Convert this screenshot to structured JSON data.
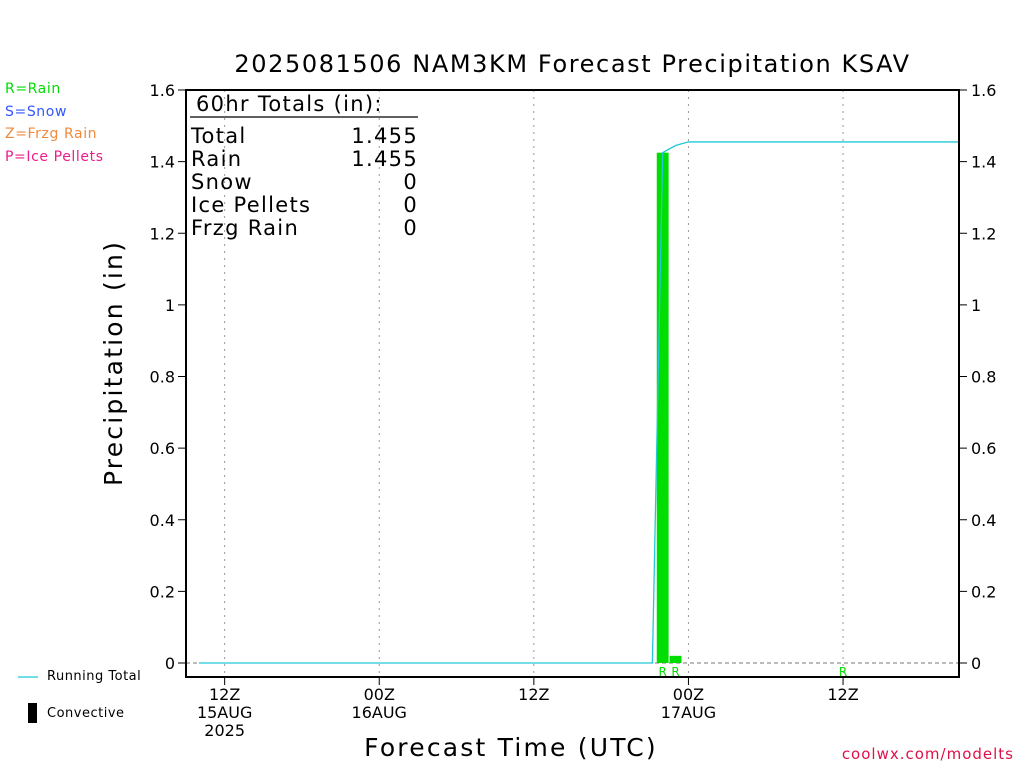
{
  "title": "2025081506 NAM3KM Forecast Precipitation KSAV",
  "legend_types": [
    {
      "label": "R=Rain",
      "color": "#00dd00"
    },
    {
      "label": "S=Snow",
      "color": "#3355ff"
    },
    {
      "label": "Z=Frzg Rain",
      "color": "#f08a3c"
    },
    {
      "label": "P=Ice Pellets",
      "color": "#ee1c8c"
    }
  ],
  "totals_box": {
    "heading": "60hr Totals (in):",
    "rows": [
      {
        "label": "Total",
        "value": "1.455"
      },
      {
        "label": "Rain",
        "value": "1.455"
      },
      {
        "label": "Snow",
        "value": "0"
      },
      {
        "label": "Ice Pellets",
        "value": "0"
      },
      {
        "label": "Frzg Rain",
        "value": "0"
      }
    ]
  },
  "key": {
    "running_total": "Running Total",
    "convective": "Convective"
  },
  "credit": "coolwx.com/modelts",
  "colors": {
    "running_total": "#22c8d8",
    "precip_bar": "#00dd00",
    "rain_marker": "#00dd00"
  },
  "chart_data": {
    "type": "bar",
    "title": "2025081506 NAM3KM Forecast Precipitation KSAV",
    "xlabel": "Forecast Time (UTC)",
    "ylabel": "Precipitation (in)",
    "ylim": [
      0,
      1.6
    ],
    "yticks": [
      "0",
      "0.2",
      "0.4",
      "0.6",
      "0.8",
      "1",
      "1.2",
      "1.4",
      "1.6"
    ],
    "x_unit": "forecast hour",
    "xlim": [
      3,
      63
    ],
    "xticks": [
      {
        "hour": 6,
        "lines": [
          "12Z",
          "15AUG",
          "2025"
        ]
      },
      {
        "hour": 18,
        "lines": [
          "00Z",
          "16AUG"
        ]
      },
      {
        "hour": 30,
        "lines": [
          "12Z"
        ]
      },
      {
        "hour": 42,
        "lines": [
          "00Z",
          "17AUG"
        ]
      },
      {
        "hour": 54,
        "lines": [
          "12Z"
        ]
      }
    ],
    "grid": "vertical dotted at tick hours",
    "precip_bars": [
      {
        "hour": 40,
        "value": 1.425,
        "type": "R"
      },
      {
        "hour": 41,
        "value": 0.02,
        "type": "R"
      }
    ],
    "type_markers": [
      {
        "hour": 40,
        "label": "R"
      },
      {
        "hour": 41,
        "label": "R"
      },
      {
        "hour": 54,
        "label": "R"
      }
    ],
    "running_total": {
      "x": [
        4,
        39.2,
        40,
        41,
        42,
        54,
        55,
        63
      ],
      "y": [
        0,
        0,
        1.425,
        1.445,
        1.455,
        1.455,
        1.455,
        1.455
      ]
    }
  }
}
